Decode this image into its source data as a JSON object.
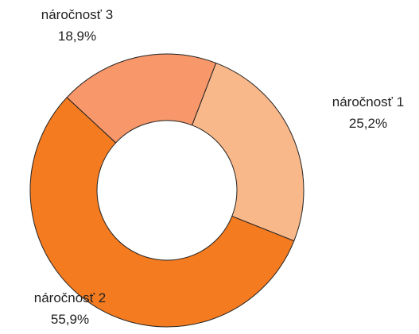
{
  "chart_data": {
    "type": "donut",
    "categories": [
      "náročnosť 1",
      "náročnosť 2",
      "náročnosť 3"
    ],
    "values": [
      25.2,
      55.9,
      18.9
    ],
    "value_labels": [
      "25,2%",
      "55,9%",
      "18,9%"
    ],
    "colors": [
      "#f9b88a",
      "#f47b20",
      "#f7976a"
    ]
  }
}
